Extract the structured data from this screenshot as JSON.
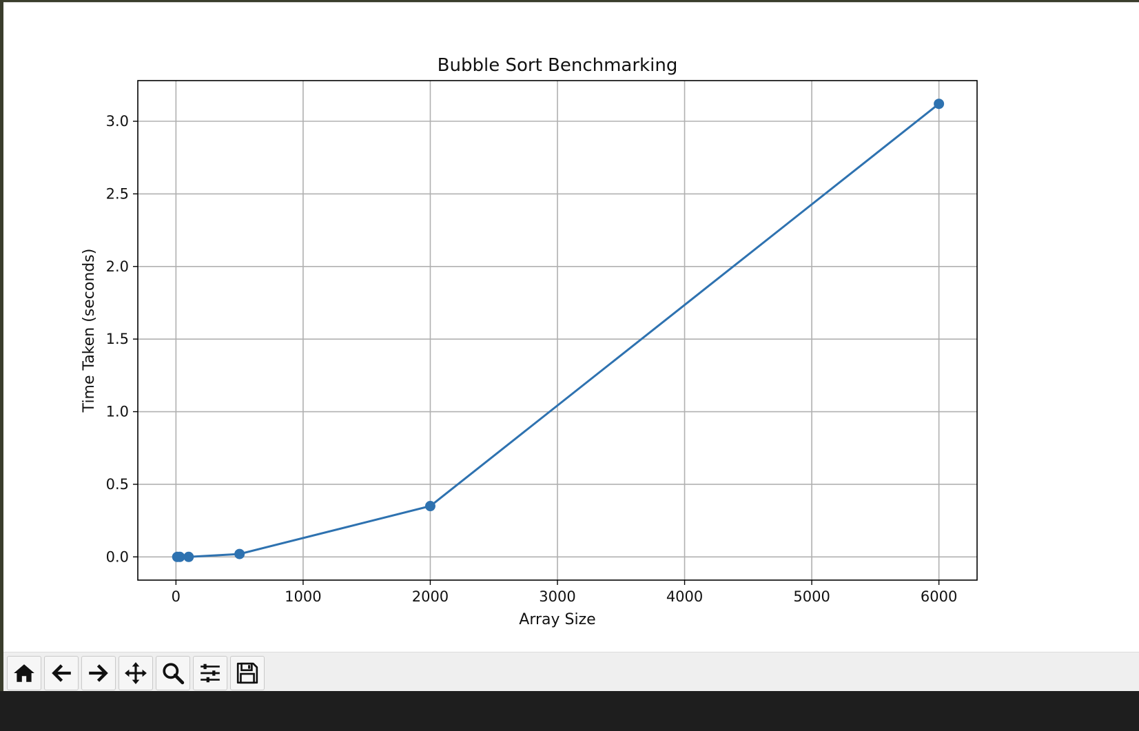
{
  "chart_data": {
    "type": "line",
    "title": "Bubble Sort Benchmarking",
    "xlabel": "Array Size",
    "ylabel": "Time Taken (seconds)",
    "xlim": [
      -300,
      6300
    ],
    "ylim": [
      -0.16,
      3.28
    ],
    "xticks": [
      0,
      1000,
      2000,
      3000,
      4000,
      5000,
      6000
    ],
    "xtick_labels": [
      "0",
      "1000",
      "2000",
      "3000",
      "4000",
      "5000",
      "6000"
    ],
    "yticks": [
      0.0,
      0.5,
      1.0,
      1.5,
      2.0,
      2.5,
      3.0
    ],
    "ytick_labels": [
      "0.0",
      "0.5",
      "1.0",
      "1.5",
      "2.0",
      "2.5",
      "3.0"
    ],
    "grid": true,
    "series": [
      {
        "color": "#2e72b0",
        "marker": "circle",
        "x": [
          10,
          30,
          100,
          500,
          2000,
          6000
        ],
        "y": [
          0.0,
          0.0,
          0.0,
          0.02,
          0.35,
          3.12
        ]
      }
    ]
  },
  "toolbar": {
    "buttons": [
      {
        "name": "home-icon"
      },
      {
        "name": "back-arrow-icon"
      },
      {
        "name": "forward-arrow-icon"
      },
      {
        "name": "pan-icon"
      },
      {
        "name": "zoom-icon"
      },
      {
        "name": "configure-subplots-icon"
      },
      {
        "name": "save-icon"
      }
    ]
  }
}
